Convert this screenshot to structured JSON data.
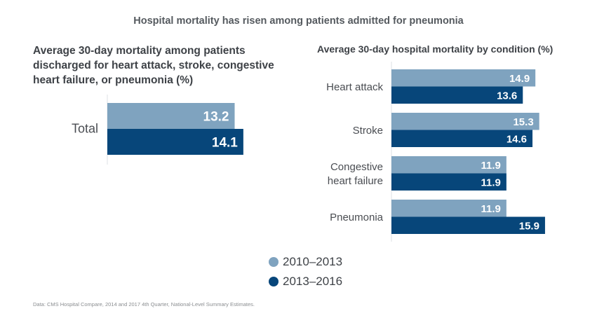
{
  "title": "Hospital mortality has risen among patients admitted for pneumonia",
  "colors": {
    "period1": "#7fa3bf",
    "period2": "#07467a",
    "axis": "#e3e6ea"
  },
  "legend": [
    {
      "label": "2010–2013",
      "color": "#7fa3bf"
    },
    {
      "label": "2013–2016",
      "color": "#07467a"
    }
  ],
  "footnote": "Data: CMS Hospital Compare, 2014 and 2017 4th Quarter, National-Level Summary Estimates.",
  "chart_data": [
    {
      "type": "bar",
      "orientation": "horizontal",
      "title": "Average 30-day mortality among patients discharged for heart attack, stroke, congestive heart failure, or pneumonia (%)",
      "categories": [
        "Total"
      ],
      "series": [
        {
          "name": "2010–2013",
          "values": [
            13.2
          ]
        },
        {
          "name": "2013–2016",
          "values": [
            14.1
          ]
        }
      ],
      "xlabel": "",
      "ylabel": "",
      "grid": false,
      "legend": "bottom-center"
    },
    {
      "type": "bar",
      "orientation": "horizontal",
      "title": "Average 30-day hospital mortality by condition (%)",
      "categories": [
        "Heart attack",
        "Stroke",
        "Congestive heart failure",
        "Pneumonia"
      ],
      "category_lines": [
        [
          "Heart attack"
        ],
        [
          "Stroke"
        ],
        [
          "Congestive",
          "heart failure"
        ],
        [
          "Pneumonia"
        ]
      ],
      "series": [
        {
          "name": "2010–2013",
          "values": [
            14.9,
            15.3,
            11.9,
            11.9
          ]
        },
        {
          "name": "2013–2016",
          "values": [
            13.6,
            14.6,
            11.9,
            15.9
          ]
        }
      ],
      "xlabel": "",
      "ylabel": "",
      "grid": false,
      "legend": "bottom-center"
    }
  ]
}
